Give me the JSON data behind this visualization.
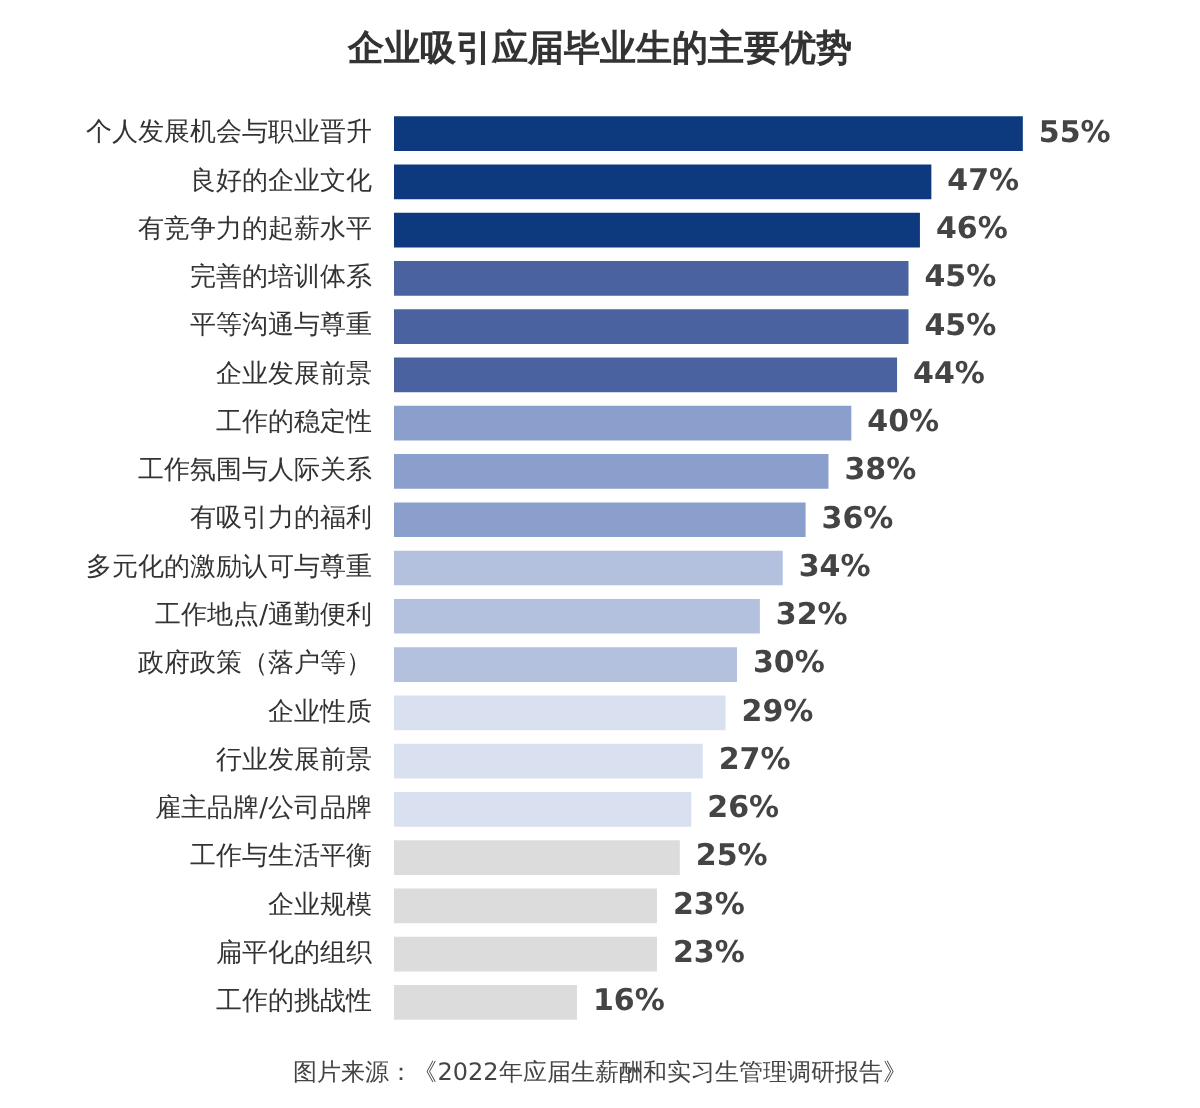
{
  "chart_data": {
    "type": "bar",
    "orientation": "horizontal",
    "title": "企业吸引应届毕业生的主要优势",
    "categories": [
      "个人发展机会与职业晋升",
      "良好的企业文化",
      "有竞争力的起薪水平",
      "完善的培训体系",
      "平等沟通与尊重",
      "企业发展前景",
      "工作的稳定性",
      "工作氛围与人际关系",
      "有吸引力的福利",
      "多元化的激励认可与尊重",
      "工作地点/通勤便利",
      "政府政策（落户等）",
      "企业性质",
      "行业发展前景",
      "雇主品牌/公司品牌",
      "工作与生活平衡",
      "企业规模",
      "扁平化的组织",
      "工作的挑战性"
    ],
    "values": [
      55,
      47,
      46,
      45,
      45,
      44,
      40,
      38,
      36,
      34,
      32,
      30,
      29,
      27,
      26,
      25,
      23,
      23,
      16
    ],
    "value_labels": [
      "55%",
      "47%",
      "46%",
      "45%",
      "45%",
      "44%",
      "40%",
      "38%",
      "36%",
      "34%",
      "32%",
      "30%",
      "29%",
      "27%",
      "26%",
      "25%",
      "23%",
      "23%",
      "16%"
    ],
    "colors": [
      "#0d3a7e",
      "#0d3a7e",
      "#0d3a7e",
      "#4a63a0",
      "#4a63a0",
      "#4a63a0",
      "#8a9fcb",
      "#8a9fcb",
      "#8a9fcb",
      "#b4c1de",
      "#b4c1de",
      "#b4c1de",
      "#d9e1f0",
      "#d9e1f0",
      "#d9e1f0",
      "#dcdcdc",
      "#dcdcdc",
      "#dcdcdc",
      "#dcdcdc"
    ],
    "annotations": [
      "图片来源：《2022年应届生薪酬和实习生管理调研报告》"
    ],
    "grid": false,
    "legend": false
  }
}
